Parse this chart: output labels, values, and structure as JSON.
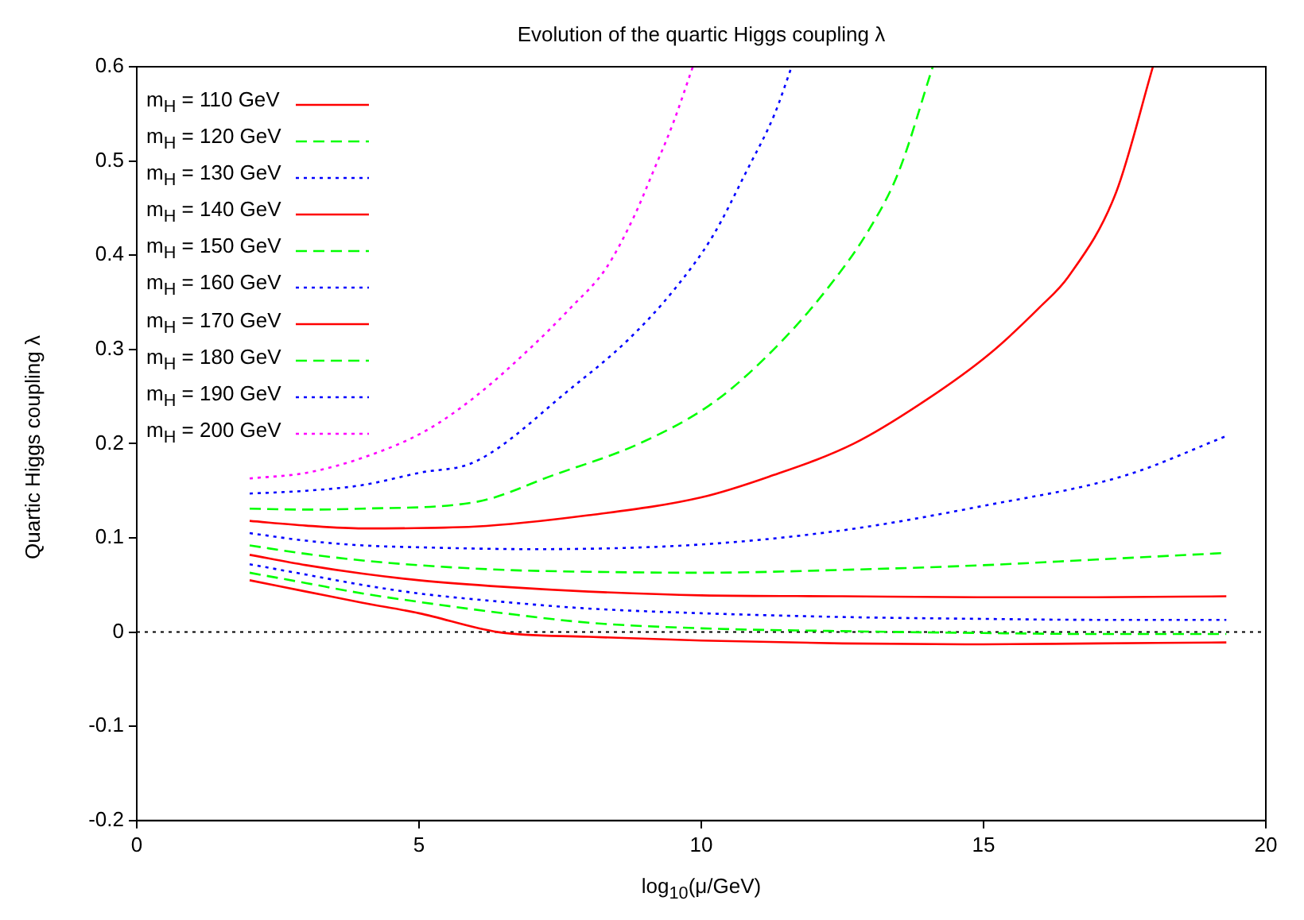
{
  "chart_data": {
    "type": "line",
    "title": "Evolution of the quartic Higgs coupling λ",
    "xlabel": "log$_{10}$(μ/GeV)",
    "ylabel": "Quartic Higgs coupling λ",
    "xlim": [
      0,
      20
    ],
    "xticks": [
      0,
      5,
      10,
      15,
      20
    ],
    "ylim": [
      -0.2,
      0.6
    ],
    "yticks": [
      -0.2,
      -0.1,
      0,
      0.1,
      0.2,
      0.3,
      0.4,
      0.5,
      0.6
    ],
    "legend": "top left",
    "marker": "none",
    "ref_lines": [
      {
        "axis": "y",
        "value": 0,
        "color": "#000000",
        "line_style": "dotted"
      }
    ],
    "series": [
      {
        "name": "m$_{H}$ = 110 GeV",
        "color": "#ff0000",
        "line_style": "solid",
        "x": [
          2,
          3,
          4,
          5,
          6.4,
          8,
          10,
          12.5,
          15,
          17,
          19.3
        ],
        "values": [
          0.055,
          0.043,
          0.031,
          0.02,
          0,
          -0.005,
          -0.009,
          -0.012,
          -0.013,
          -0.012,
          -0.011
        ]
      },
      {
        "name": "m$_{H}$ = 120 GeV",
        "color": "#00ff00",
        "line_style": "dashed",
        "x": [
          2,
          3,
          4,
          5,
          6.5,
          8,
          10,
          12.5,
          15,
          17,
          19.3
        ],
        "values": [
          0.063,
          0.052,
          0.041,
          0.032,
          0.02,
          0.01,
          0.004,
          0.001,
          -0.001,
          -0.002,
          -0.002
        ]
      },
      {
        "name": "m$_{H}$ = 130 GeV",
        "color": "#0000ff",
        "line_style": "dotted",
        "x": [
          2,
          3,
          4,
          5,
          6.5,
          8,
          10,
          12.5,
          15,
          17,
          19.3
        ],
        "values": [
          0.072,
          0.061,
          0.05,
          0.041,
          0.032,
          0.025,
          0.02,
          0.016,
          0.014,
          0.013,
          0.013
        ]
      },
      {
        "name": "m$_{H}$ = 140 GeV",
        "color": "#ff0000",
        "line_style": "solid",
        "x": [
          2,
          3,
          4,
          5,
          6.5,
          8,
          10,
          12.5,
          15,
          17,
          19.3
        ],
        "values": [
          0.082,
          0.071,
          0.062,
          0.055,
          0.048,
          0.043,
          0.039,
          0.038,
          0.037,
          0.037,
          0.038
        ]
      },
      {
        "name": "m$_{H}$ = 150 GeV",
        "color": "#00ff00",
        "line_style": "dashed",
        "x": [
          2,
          3,
          4,
          5,
          6.5,
          8,
          10,
          12.5,
          15,
          17,
          19.3
        ],
        "values": [
          0.092,
          0.083,
          0.076,
          0.071,
          0.066,
          0.064,
          0.063,
          0.066,
          0.071,
          0.077,
          0.084
        ]
      },
      {
        "name": "m$_{H}$ = 160 GeV",
        "color": "#0000ff",
        "line_style": "dotted",
        "x": [
          2,
          3,
          4,
          5,
          7,
          10,
          12.5,
          15,
          17.5,
          19.3
        ],
        "values": [
          0.105,
          0.097,
          0.092,
          0.09,
          0.088,
          0.093,
          0.108,
          0.134,
          0.166,
          0.208
        ]
      },
      {
        "name": "m$_{H}$ = 170 GeV",
        "color": "#ff0000",
        "line_style": "solid",
        "x": [
          2,
          3,
          4,
          6,
          8,
          10,
          11.2,
          12.7,
          14,
          15.1,
          16,
          16.5,
          17.35,
          18
        ],
        "values": [
          0.118,
          0.113,
          0.11,
          0.112,
          0.124,
          0.143,
          0.165,
          0.2,
          0.247,
          0.295,
          0.345,
          0.377,
          0.467,
          0.6
        ]
      },
      {
        "name": "m$_{H}$ = 180 GeV",
        "color": "#00ff00",
        "line_style": "dashed",
        "x": [
          2,
          3,
          4,
          6,
          7.4,
          8.9,
          10.2,
          11.2,
          12.2,
          13,
          13.5,
          14.1
        ],
        "values": [
          0.131,
          0.13,
          0.131,
          0.138,
          0.167,
          0.2,
          0.243,
          0.295,
          0.362,
          0.43,
          0.489,
          0.6
        ]
      },
      {
        "name": "m$_{H}$ = 190 GeV",
        "color": "#0000ff",
        "line_style": "dotted",
        "x": [
          2,
          3,
          4,
          5,
          6,
          7.7,
          8.7,
          9.5,
          10.2,
          10.8,
          11.3,
          11.6
        ],
        "values": [
          0.147,
          0.15,
          0.156,
          0.169,
          0.181,
          0.259,
          0.31,
          0.362,
          0.42,
          0.489,
          0.55,
          0.6
        ]
      },
      {
        "name": "m$_{H}$ = 200 GeV",
        "color": "#ff00ff",
        "line_style": "dotted",
        "x": [
          2,
          3,
          4,
          5.1,
          6,
          7,
          7.7,
          8.3,
          8.8,
          9.15,
          9.5,
          9.85
        ],
        "values": [
          0.163,
          0.169,
          0.185,
          0.213,
          0.25,
          0.303,
          0.345,
          0.385,
          0.44,
          0.489,
          0.54,
          0.6
        ]
      }
    ]
  }
}
